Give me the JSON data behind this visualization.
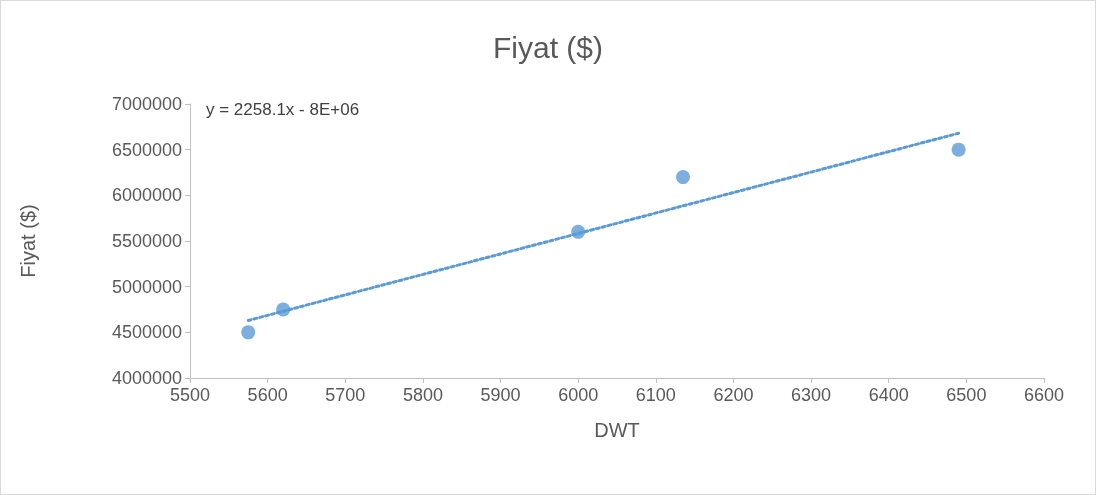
{
  "chart_data": {
    "type": "scatter",
    "title": "Fiyat ($)",
    "xlabel": "DWT",
    "ylabel": "Fiyat ($)",
    "annotations": [
      "y = 2258.1x - 8E+06"
    ],
    "xlim": [
      5500,
      6600
    ],
    "xticks": [
      5500,
      5600,
      5700,
      5800,
      5900,
      6000,
      6100,
      6200,
      6300,
      6400,
      6500,
      6600
    ],
    "ylim": [
      4000000,
      7000000
    ],
    "yticks": [
      4000000,
      4500000,
      5000000,
      5500000,
      6000000,
      6500000,
      7000000
    ],
    "series": [
      {
        "color": "#5b9bd5",
        "marker": "circle",
        "x": [
          5575,
          5620,
          6000,
          6135,
          6490
        ],
        "values": [
          4500000,
          4750000,
          5600000,
          6200000,
          6500000
        ]
      },
      {
        "type": "line",
        "color": "#5b9bd5",
        "marker": "none",
        "line_style": "dotted",
        "x": [
          5575,
          6490
        ],
        "values": [
          4630000,
          6680000
        ]
      }
    ]
  }
}
